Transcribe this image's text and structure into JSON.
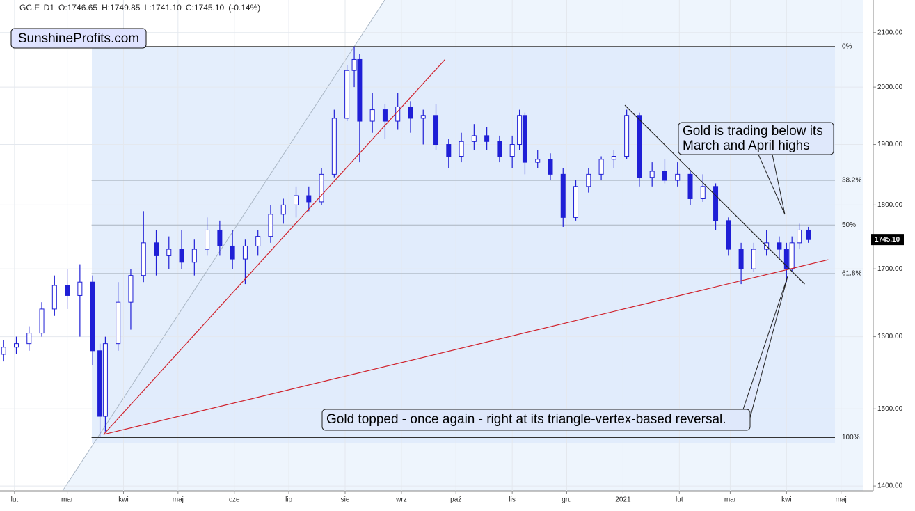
{
  "chart_data": {
    "type": "candlestick",
    "header": [
      "GC.F",
      "D1",
      "O:1746.65",
      "H:1749.85",
      "L:1741.10",
      "C:1745.10",
      "(-0.14%)"
    ],
    "brand": "SunshineProfits.com",
    "color": "#1f1fd6",
    "log_scale": true,
    "grid": true,
    "x": [
      -6,
      1,
      8,
      15,
      22,
      29,
      36,
      43,
      47,
      50,
      57,
      64,
      71,
      78,
      85,
      92,
      99,
      106,
      113,
      120,
      127,
      134,
      141,
      148,
      155,
      162,
      169,
      176,
      183,
      187,
      190,
      197,
      204,
      211,
      218,
      225,
      232,
      239,
      246,
      253,
      260,
      267,
      274,
      278,
      281,
      288,
      295,
      302,
      309,
      316,
      323,
      330,
      337,
      344,
      351,
      358,
      365,
      372,
      379,
      386,
      393,
      400,
      407,
      414,
      421,
      425,
      428,
      432,
      437
    ],
    "open": [
      1575,
      1585,
      1590,
      1605,
      1640,
      1675,
      1660,
      1680,
      1580,
      1490,
      1590,
      1650,
      1690,
      1740,
      1720,
      1730,
      1710,
      1730,
      1760,
      1735,
      1715,
      1735,
      1750,
      1785,
      1800,
      1815,
      1805,
      1850,
      1945,
      2030,
      2050,
      1940,
      1960,
      1940,
      1965,
      1945,
      1950,
      1900,
      1880,
      1905,
      1915,
      1905,
      1880,
      1900,
      1950,
      1870,
      1875,
      1850,
      1780,
      1830,
      1850,
      1875,
      1880,
      1950,
      1845,
      1855,
      1840,
      1850,
      1810,
      1830,
      1775,
      1730,
      1700,
      1730,
      1740,
      1730,
      1700,
      1740,
      1760
    ],
    "high": [
      1595,
      1600,
      1615,
      1650,
      1690,
      1700,
      1707,
      1690,
      1590,
      1600,
      1680,
      1700,
      1790,
      1760,
      1750,
      1760,
      1745,
      1780,
      1775,
      1760,
      1745,
      1760,
      1800,
      1810,
      1830,
      1830,
      1860,
      1960,
      2040,
      2074,
      2060,
      1990,
      1970,
      1990,
      1975,
      1960,
      1970,
      1910,
      1920,
      1935,
      1930,
      1915,
      1915,
      1960,
      1955,
      1890,
      1885,
      1860,
      1840,
      1860,
      1880,
      1890,
      1960,
      1955,
      1870,
      1875,
      1870,
      1855,
      1850,
      1835,
      1780,
      1740,
      1740,
      1760,
      1750,
      1740,
      1750,
      1770,
      1765
    ],
    "low": [
      1565,
      1575,
      1580,
      1600,
      1630,
      1640,
      1600,
      1560,
      1462,
      1470,
      1580,
      1610,
      1680,
      1690,
      1700,
      1700,
      1690,
      1720,
      1720,
      1700,
      1677,
      1720,
      1740,
      1770,
      1780,
      1790,
      1800,
      1845,
      1940,
      2000,
      1870,
      1920,
      1910,
      1925,
      1920,
      1900,
      1890,
      1860,
      1870,
      1890,
      1890,
      1870,
      1860,
      1890,
      1850,
      1860,
      1840,
      1765,
      1775,
      1820,
      1840,
      1860,
      1875,
      1830,
      1830,
      1835,
      1830,
      1800,
      1805,
      1760,
      1720,
      1677,
      1695,
      1720,
      1715,
      1680,
      1695,
      1730,
      1740
    ],
    "close": [
      1585,
      1590,
      1605,
      1640,
      1675,
      1660,
      1680,
      1580,
      1490,
      1590,
      1650,
      1690,
      1740,
      1720,
      1730,
      1710,
      1730,
      1760,
      1735,
      1715,
      1735,
      1750,
      1785,
      1800,
      1815,
      1805,
      1850,
      1945,
      2030,
      2050,
      1940,
      1960,
      1940,
      1965,
      1945,
      1950,
      1900,
      1880,
      1905,
      1915,
      1905,
      1880,
      1900,
      1950,
      1870,
      1875,
      1850,
      1780,
      1830,
      1850,
      1875,
      1880,
      1950,
      1845,
      1855,
      1840,
      1850,
      1810,
      1830,
      1775,
      1730,
      1700,
      1730,
      1740,
      1730,
      1700,
      1740,
      1760,
      1745
    ],
    "xlim": [
      -8,
      467
    ],
    "xticks": [
      {
        "value": 0,
        "label": "lut"
      },
      {
        "value": 29,
        "label": "mar"
      },
      {
        "value": 60,
        "label": "kwi"
      },
      {
        "value": 90,
        "label": "maj"
      },
      {
        "value": 121,
        "label": "cze"
      },
      {
        "value": 151,
        "label": "lip"
      },
      {
        "value": 182,
        "label": "sie"
      },
      {
        "value": 213,
        "label": "wrz"
      },
      {
        "value": 243,
        "label": "paź"
      },
      {
        "value": 274,
        "label": "lis"
      },
      {
        "value": 304,
        "label": "gru"
      },
      {
        "value": 335,
        "label": "2021"
      },
      {
        "value": 366,
        "label": "lut"
      },
      {
        "value": 394,
        "label": "mar"
      },
      {
        "value": 425,
        "label": "kwi"
      },
      {
        "value": 455,
        "label": "maj"
      }
    ],
    "ylim": [
      1394,
      2162
    ],
    "yticks": [
      {
        "value": 1400,
        "label": "1400.00"
      },
      {
        "value": 1500,
        "label": "1500.00"
      },
      {
        "value": 1600,
        "label": "1600.00"
      },
      {
        "value": 1700,
        "label": "1700.00"
      },
      {
        "value": 1800,
        "label": "1800.00"
      },
      {
        "value": 1900,
        "label": "1900.00"
      },
      {
        "value": 2000,
        "label": "2000.00"
      },
      {
        "value": 2100,
        "label": "2100.00"
      }
    ],
    "fib_levels": [
      {
        "value": 2074,
        "label": "0%"
      },
      {
        "value": 1840,
        "label": "38.2%"
      },
      {
        "value": 1768,
        "label": "50%"
      },
      {
        "value": 1693,
        "label": "61.8%"
      },
      {
        "value": 1462,
        "label": "100%"
      }
    ],
    "last_price": {
      "value": 1745.1,
      "label": "1745.10"
    },
    "trendlines": [
      {
        "color": "#d0202a",
        "x": [
          49,
          237
        ],
        "y": [
          1466,
          2050
        ]
      },
      {
        "color": "#d0202a",
        "x": [
          49,
          448
        ],
        "y": [
          1466,
          1714
        ]
      },
      {
        "color": "#222222",
        "x": [
          336,
          435
        ],
        "y": [
          1968,
          1677
        ]
      }
    ],
    "annotations": [
      {
        "lines": [
          "Gold is trading below its",
          "March and April highs"
        ]
      },
      {
        "lines": [
          "Gold topped - once again - right at its triangle-vertex-based reversal."
        ]
      }
    ]
  }
}
